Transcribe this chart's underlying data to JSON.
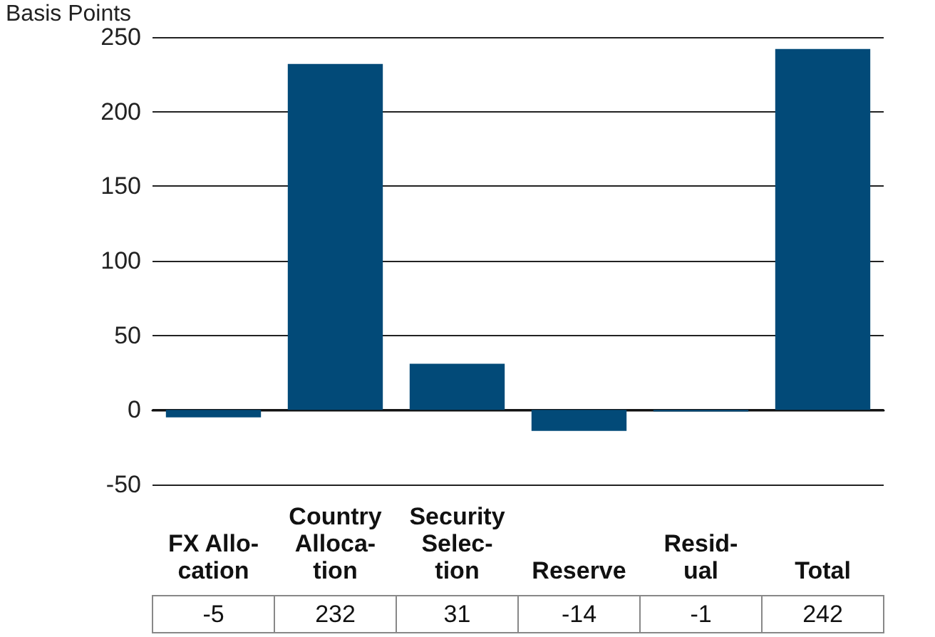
{
  "chart_data": {
    "type": "bar",
    "ylabel": "Basis Points",
    "categories": [
      "FX Allo-\ncation",
      "Country\nAlloca-\ntion",
      "Security\nSelec-\ntion",
      "Reserve",
      "Resid-\nual",
      "Total"
    ],
    "values": [
      -5,
      232,
      31,
      -14,
      -1,
      242
    ],
    "color": "#024a78",
    "ylim": [
      -50,
      250
    ],
    "yticks": [
      -50,
      0,
      50,
      100,
      150,
      200,
      250
    ],
    "grid": "y",
    "data_labels": true
  }
}
